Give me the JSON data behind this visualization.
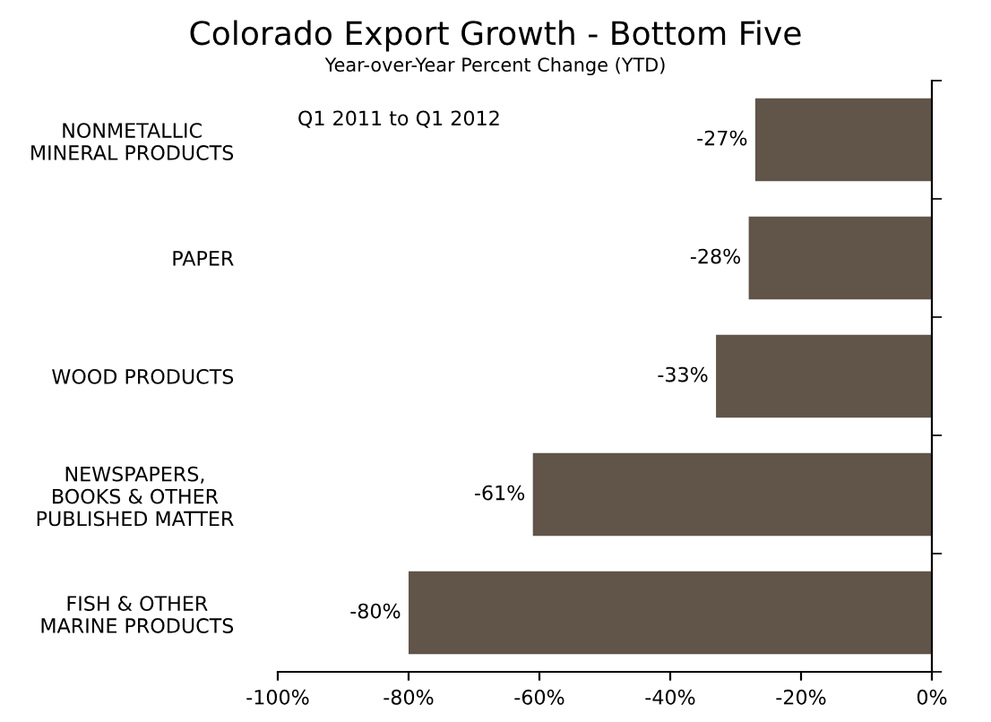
{
  "chart_data": {
    "type": "bar",
    "orientation": "horizontal",
    "title": "Colorado Export Growth - Bottom Five",
    "subtitle": "Year-over-Year Percent Change (YTD)",
    "categories": [
      "NONMETALLIC\nMINERAL PRODUCTS",
      "PAPER",
      "WOOD PRODUCTS",
      "NEWSPAPERS,\nBOOKS & OTHER\nPUBLISHED MATTER",
      "FISH & OTHER\nMARINE PRODUCTS"
    ],
    "values": [
      -27,
      -28,
      -33,
      -61,
      -80
    ],
    "value_labels": [
      "-27%",
      "-28%",
      "-33%",
      "-61%",
      "-80%"
    ],
    "color": "#615448",
    "xlim": [
      -100,
      0
    ],
    "xticks": [
      {
        "value": -100,
        "label": "-100%"
      },
      {
        "value": -80,
        "label": "-80%"
      },
      {
        "value": -60,
        "label": "-60%"
      },
      {
        "value": -40,
        "label": "-40%"
      },
      {
        "value": -20,
        "label": "-20%"
      },
      {
        "value": 0,
        "label": "0%"
      }
    ],
    "annotations": [
      "Q1 2011 to Q1 2012"
    ],
    "grid": false,
    "legend": false
  }
}
